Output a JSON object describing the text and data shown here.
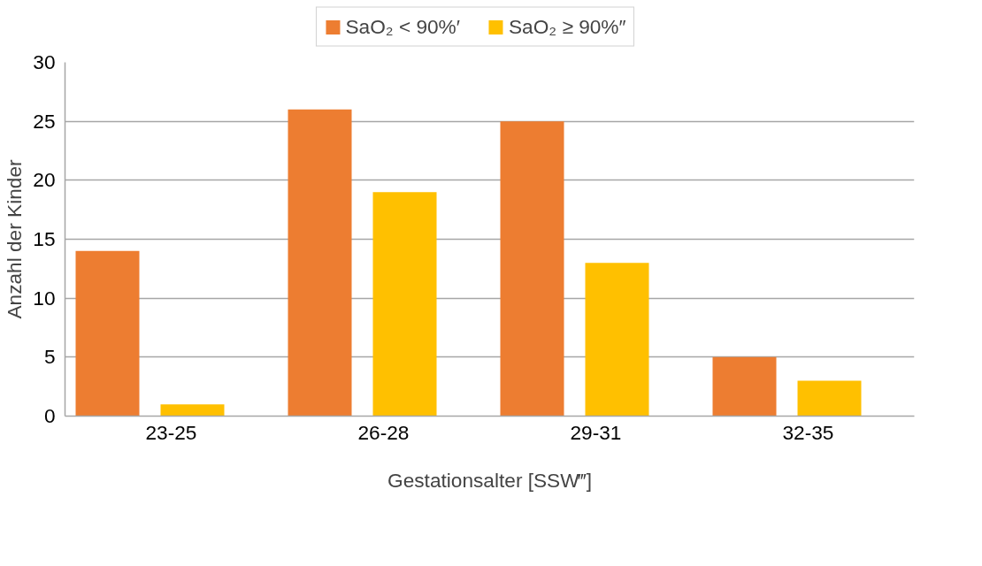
{
  "chart_data": {
    "type": "bar",
    "xlabel": "Gestationsalter [SSW‴]",
    "ylabel": "Anzahl der Kinder",
    "categories": [
      "23-25",
      "26-28",
      "29-31",
      "32-35"
    ],
    "series": [
      {
        "name": "SaO₂ < 90%′",
        "color": "#ed7d31",
        "values": [
          14,
          26,
          25,
          5
        ]
      },
      {
        "name": "SaO₂ ≥ 90%″",
        "color": "#ffc000",
        "values": [
          1,
          19,
          13,
          3
        ]
      }
    ],
    "ylim": [
      0,
      30
    ],
    "yticks": [
      0,
      5,
      10,
      15,
      20,
      25,
      30
    ],
    "grid": "y",
    "legend": "top"
  }
}
